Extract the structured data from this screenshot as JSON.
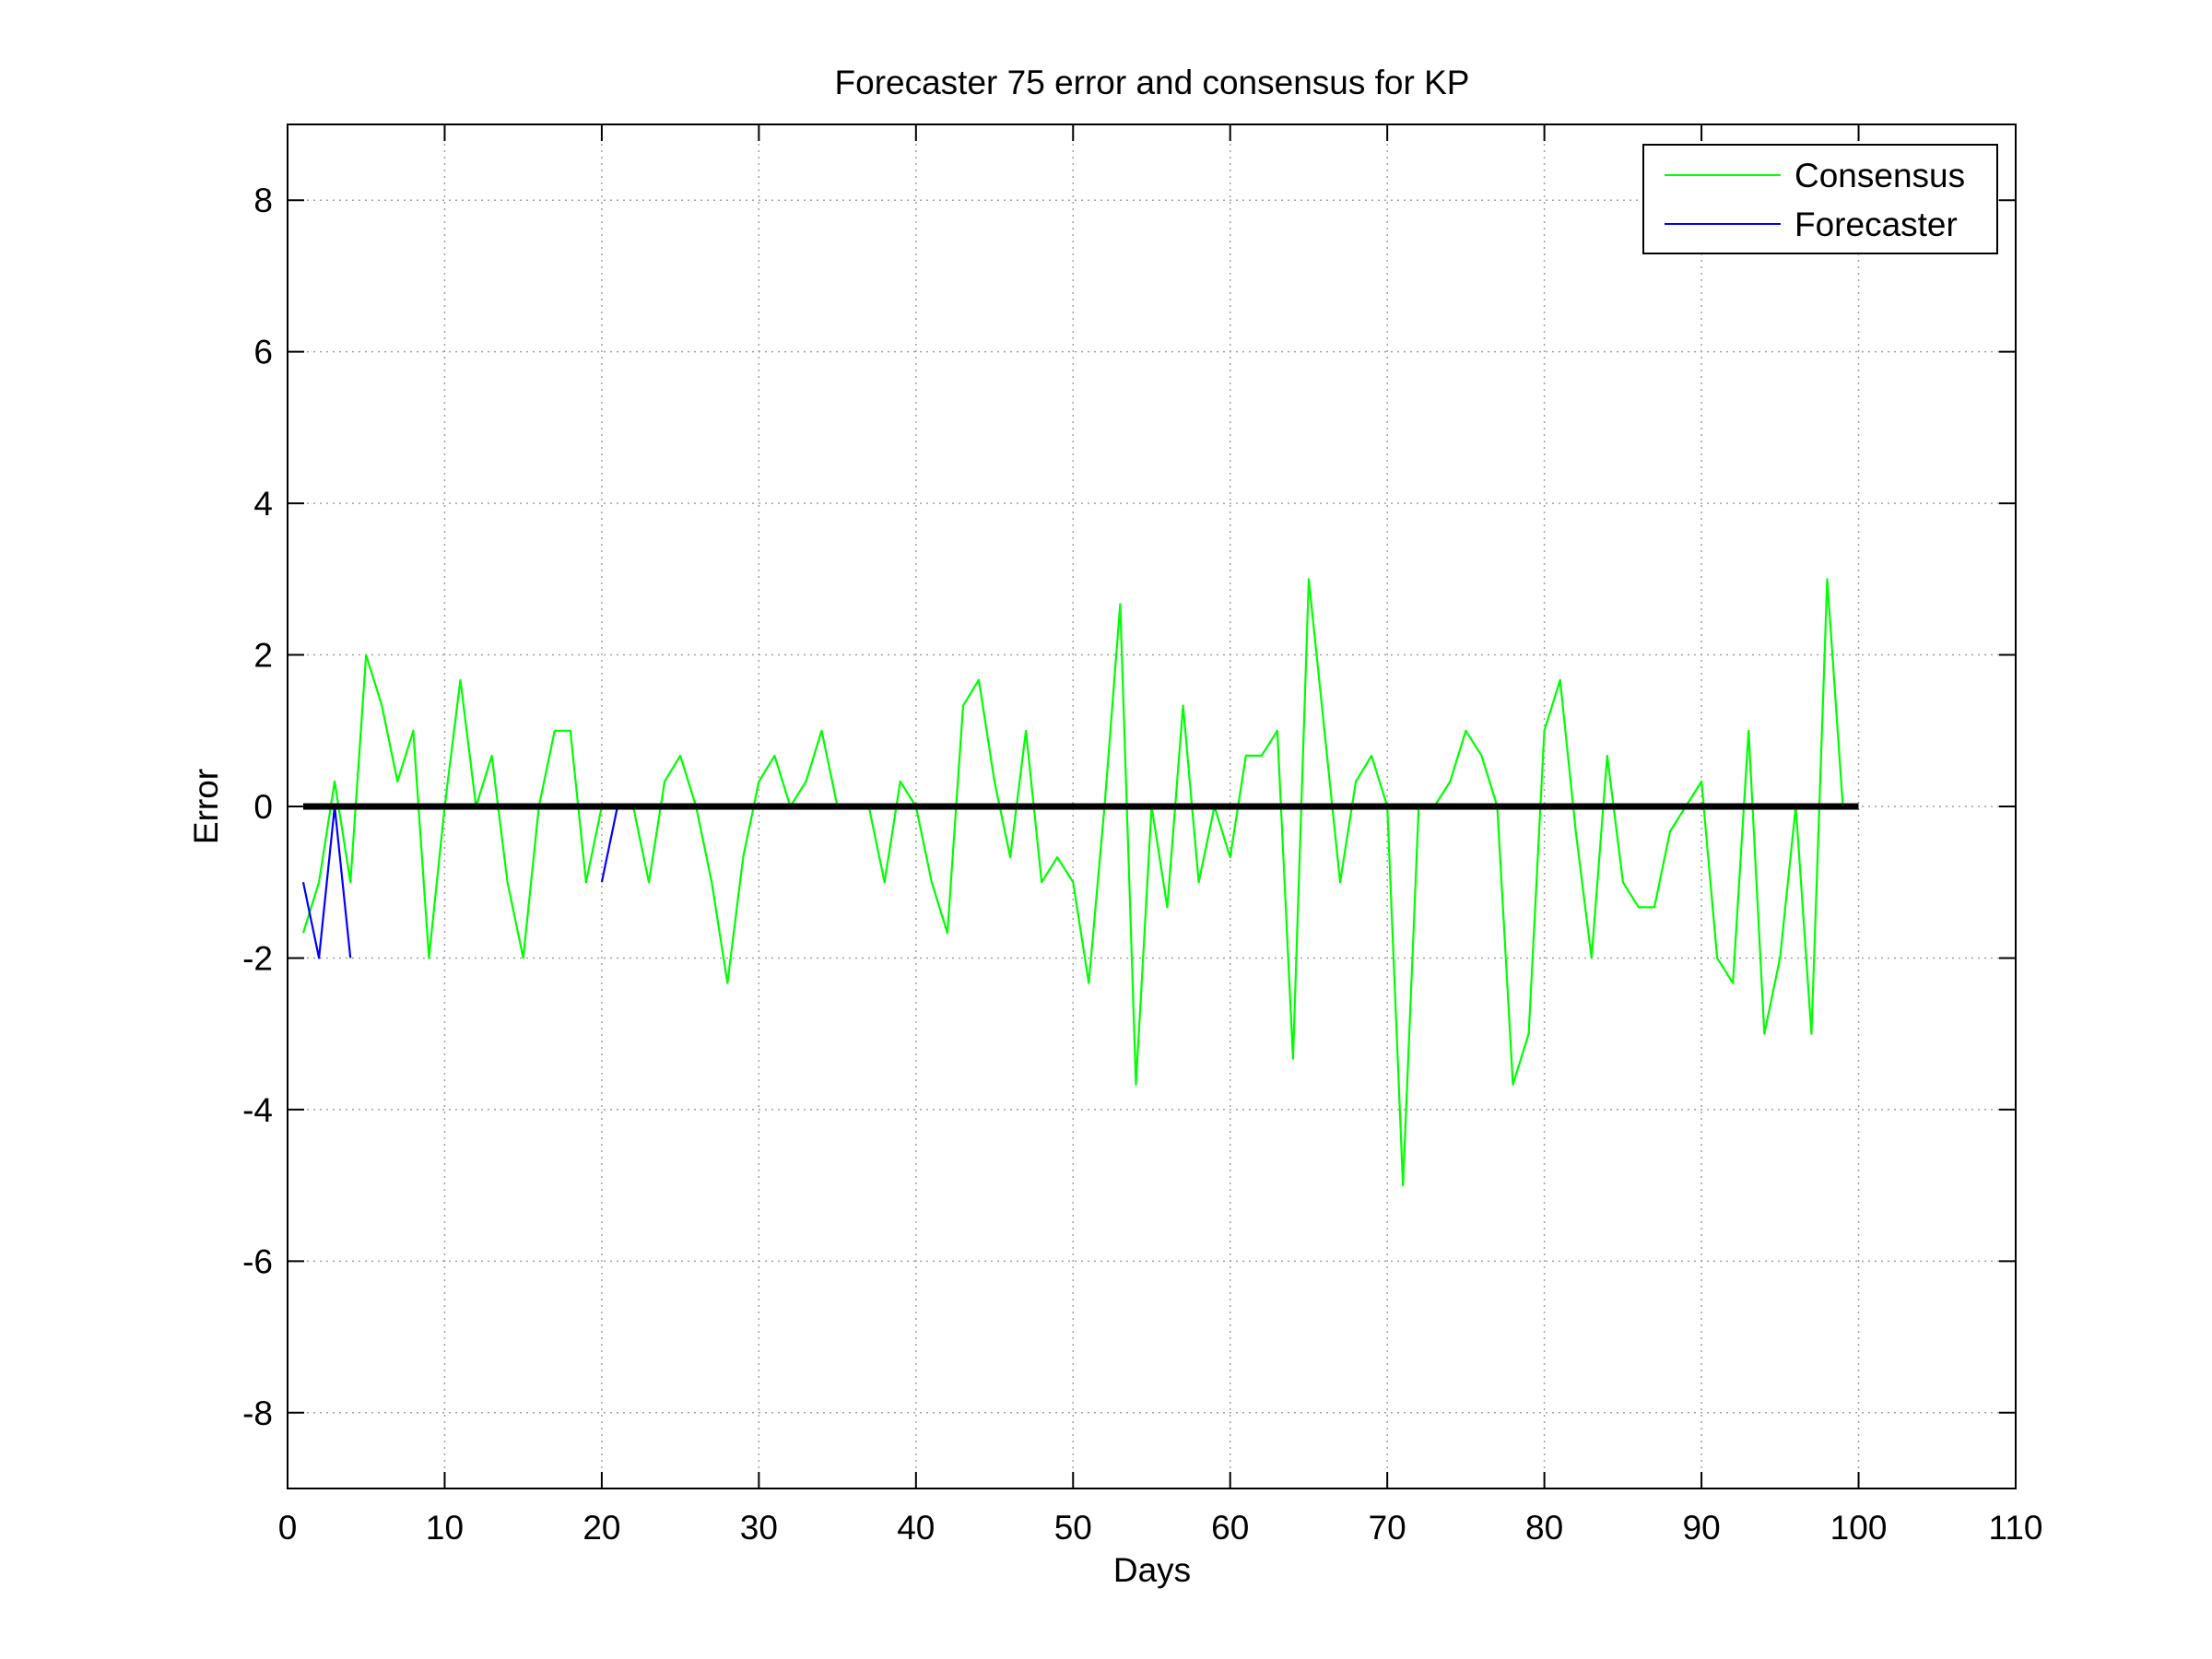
{
  "chart_data": {
    "type": "line",
    "title": "Forecaster 75 error and consensus for KP",
    "xlabel": "Days",
    "ylabel": "Error",
    "xlim": [
      0,
      110
    ],
    "ylim": [
      -9,
      9
    ],
    "xticks": [
      0,
      10,
      20,
      30,
      40,
      50,
      60,
      70,
      80,
      90,
      100,
      110
    ],
    "yticks": [
      -8,
      -6,
      -4,
      -2,
      0,
      2,
      4,
      6,
      8
    ],
    "xtick_labels": [
      "0",
      "10",
      "20",
      "30",
      "40",
      "50",
      "60",
      "70",
      "80",
      "90",
      "100",
      "110"
    ],
    "ytick_labels": [
      "-8",
      "-6",
      "-4",
      "-2",
      "0",
      "2",
      "4",
      "6",
      "8"
    ],
    "grid": true,
    "legend_position": "top-right",
    "series": [
      {
        "name": "Consensus",
        "color": "#00ff00",
        "x": [
          1,
          2,
          3,
          4,
          5,
          6,
          7,
          8,
          9,
          10,
          11,
          12,
          13,
          14,
          15,
          16,
          17,
          18,
          19,
          20,
          21,
          22,
          23,
          24,
          25,
          26,
          27,
          28,
          29,
          30,
          31,
          32,
          33,
          34,
          35,
          36,
          37,
          38,
          39,
          40,
          41,
          42,
          43,
          44,
          45,
          46,
          47,
          48,
          49,
          50,
          51,
          52,
          53,
          54,
          55,
          56,
          57,
          58,
          59,
          60,
          61,
          62,
          63,
          64,
          65,
          66,
          67,
          68,
          69,
          70,
          71,
          72,
          73,
          74,
          75,
          76,
          77,
          78,
          79,
          80,
          81,
          82,
          83,
          84,
          85,
          86,
          87,
          88,
          89,
          90,
          91,
          92,
          93,
          94,
          95,
          96,
          97,
          98,
          99
        ],
        "y": [
          -1.67,
          -1,
          0.33,
          -1,
          2,
          1.33,
          0.33,
          1,
          -2,
          0,
          1.67,
          0,
          0.67,
          -1,
          -2,
          0,
          1,
          1,
          -1,
          0,
          0,
          0,
          -1,
          0.33,
          0.67,
          0,
          -1,
          -2.33,
          -0.67,
          0.33,
          0.67,
          0,
          0.33,
          1,
          0,
          0,
          0,
          -1,
          0.33,
          0,
          -1,
          -1.67,
          1.33,
          1.67,
          0.33,
          -0.67,
          1,
          -1,
          -0.67,
          -1,
          -2.33,
          0,
          2.67,
          -3.67,
          0,
          -1.33,
          1.33,
          -1,
          0,
          -0.67,
          0.67,
          0.67,
          1,
          -3.33,
          3,
          1,
          -1,
          0.33,
          0.67,
          0,
          -5,
          0,
          0,
          0.33,
          1,
          0.67,
          0,
          -3.67,
          -3,
          1,
          1.67,
          -0.33,
          -2,
          0.67,
          -1,
          -1.33,
          -1.33,
          -0.33,
          0,
          0.33,
          -2,
          -2.33,
          1,
          -3,
          -2,
          0,
          -3,
          3,
          0
        ]
      },
      {
        "name": "Forecaster",
        "color": "#0000ff",
        "segments": [
          {
            "x": [
              1,
              2,
              3,
              4
            ],
            "y": [
              -1,
              -2,
              0,
              -2
            ]
          },
          {
            "x": [
              20,
              21
            ],
            "y": [
              -1,
              0
            ]
          }
        ]
      },
      {
        "name": "",
        "color": "#000000",
        "role": "zero reference line",
        "x": [
          1,
          100
        ],
        "y": [
          0,
          0
        ]
      }
    ]
  }
}
